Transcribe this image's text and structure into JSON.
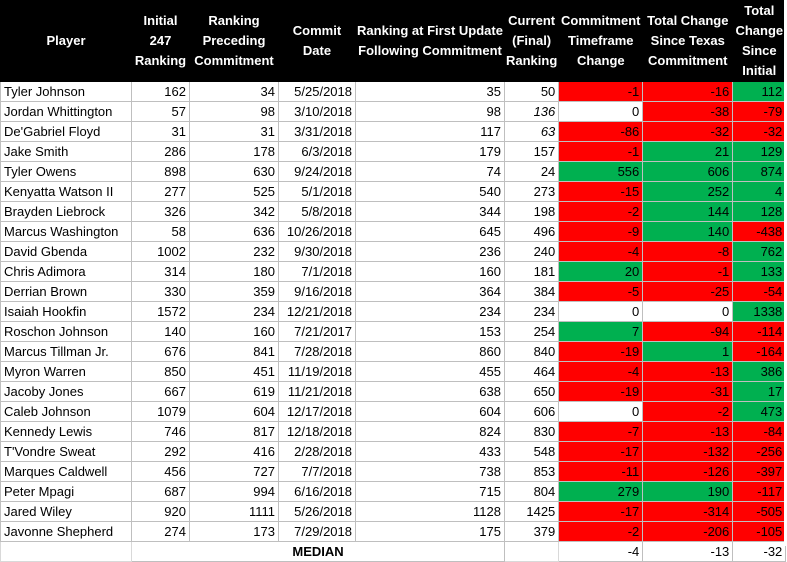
{
  "headers": [
    "Player",
    "Initial 247 Ranking",
    "Ranking Preceding Commitment",
    "Commit Date",
    "Ranking at First Update Following Commitment",
    "Current (Final) Ranking",
    "Commitment Timeframe Change",
    "Total Change Since Texas Commitment",
    "Total Change Since Initial"
  ],
  "rows": [
    {
      "player": "Tyler Johnson",
      "initial": "162",
      "preceding": "34",
      "date": "5/25/2018",
      "first_update": "35",
      "current": "50",
      "current_italic": false,
      "timeframe": "-1",
      "timeframe_color": "red",
      "since_texas": "-16",
      "since_texas_color": "red",
      "since_initial": "112",
      "since_initial_color": "green"
    },
    {
      "player": "Jordan Whittington",
      "initial": "57",
      "preceding": "98",
      "date": "3/10/2018",
      "first_update": "98",
      "current": "136",
      "current_italic": true,
      "timeframe": "0",
      "timeframe_color": "white",
      "since_texas": "-38",
      "since_texas_color": "red",
      "since_initial": "-79",
      "since_initial_color": "red"
    },
    {
      "player": "De'Gabriel Floyd",
      "initial": "31",
      "preceding": "31",
      "date": "3/31/2018",
      "first_update": "117",
      "current": "63",
      "current_italic": true,
      "timeframe": "-86",
      "timeframe_color": "red",
      "since_texas": "-32",
      "since_texas_color": "red",
      "since_initial": "-32",
      "since_initial_color": "red"
    },
    {
      "player": "Jake Smith",
      "initial": "286",
      "preceding": "178",
      "date": "6/3/2018",
      "first_update": "179",
      "current": "157",
      "current_italic": false,
      "timeframe": "-1",
      "timeframe_color": "red",
      "since_texas": "21",
      "since_texas_color": "green",
      "since_initial": "129",
      "since_initial_color": "green"
    },
    {
      "player": "Tyler Owens",
      "initial": "898",
      "preceding": "630",
      "date": "9/24/2018",
      "first_update": "74",
      "current": "24",
      "current_italic": false,
      "timeframe": "556",
      "timeframe_color": "green",
      "since_texas": "606",
      "since_texas_color": "green",
      "since_initial": "874",
      "since_initial_color": "green"
    },
    {
      "player": "Kenyatta Watson II",
      "initial": "277",
      "preceding": "525",
      "date": "5/1/2018",
      "first_update": "540",
      "current": "273",
      "current_italic": false,
      "timeframe": "-15",
      "timeframe_color": "red",
      "since_texas": "252",
      "since_texas_color": "green",
      "since_initial": "4",
      "since_initial_color": "green"
    },
    {
      "player": "Brayden Liebrock",
      "initial": "326",
      "preceding": "342",
      "date": "5/8/2018",
      "first_update": "344",
      "current": "198",
      "current_italic": false,
      "timeframe": "-2",
      "timeframe_color": "red",
      "since_texas": "144",
      "since_texas_color": "green",
      "since_initial": "128",
      "since_initial_color": "green"
    },
    {
      "player": "Marcus Washington",
      "initial": "58",
      "preceding": "636",
      "date": "10/26/2018",
      "first_update": "645",
      "current": "496",
      "current_italic": false,
      "timeframe": "-9",
      "timeframe_color": "red",
      "since_texas": "140",
      "since_texas_color": "green",
      "since_initial": "-438",
      "since_initial_color": "red"
    },
    {
      "player": "David Gbenda",
      "initial": "1002",
      "preceding": "232",
      "date": "9/30/2018",
      "first_update": "236",
      "current": "240",
      "current_italic": false,
      "timeframe": "-4",
      "timeframe_color": "red",
      "since_texas": "-8",
      "since_texas_color": "red",
      "since_initial": "762",
      "since_initial_color": "green"
    },
    {
      "player": "Chris Adimora",
      "initial": "314",
      "preceding": "180",
      "date": "7/1/2018",
      "first_update": "160",
      "current": "181",
      "current_italic": false,
      "timeframe": "20",
      "timeframe_color": "green",
      "since_texas": "-1",
      "since_texas_color": "red",
      "since_initial": "133",
      "since_initial_color": "green"
    },
    {
      "player": "Derrian Brown",
      "initial": "330",
      "preceding": "359",
      "date": "9/16/2018",
      "first_update": "364",
      "current": "384",
      "current_italic": false,
      "timeframe": "-5",
      "timeframe_color": "red",
      "since_texas": "-25",
      "since_texas_color": "red",
      "since_initial": "-54",
      "since_initial_color": "red"
    },
    {
      "player": "Isaiah Hookfin",
      "initial": "1572",
      "preceding": "234",
      "date": "12/21/2018",
      "first_update": "234",
      "current": "234",
      "current_italic": false,
      "timeframe": "0",
      "timeframe_color": "white",
      "since_texas": "0",
      "since_texas_color": "white",
      "since_initial": "1338",
      "since_initial_color": "green"
    },
    {
      "player": "Roschon Johnson",
      "initial": "140",
      "preceding": "160",
      "date": "7/21/2017",
      "first_update": "153",
      "current": "254",
      "current_italic": false,
      "timeframe": "7",
      "timeframe_color": "green",
      "since_texas": "-94",
      "since_texas_color": "red",
      "since_initial": "-114",
      "since_initial_color": "red"
    },
    {
      "player": "Marcus Tillman Jr.",
      "initial": "676",
      "preceding": "841",
      "date": "7/28/2018",
      "first_update": "860",
      "current": "840",
      "current_italic": false,
      "timeframe": "-19",
      "timeframe_color": "red",
      "since_texas": "1",
      "since_texas_color": "green",
      "since_initial": "-164",
      "since_initial_color": "red"
    },
    {
      "player": "Myron Warren",
      "initial": "850",
      "preceding": "451",
      "date": "11/19/2018",
      "first_update": "455",
      "current": "464",
      "current_italic": false,
      "timeframe": "-4",
      "timeframe_color": "red",
      "since_texas": "-13",
      "since_texas_color": "red",
      "since_initial": "386",
      "since_initial_color": "green"
    },
    {
      "player": "Jacoby Jones",
      "initial": "667",
      "preceding": "619",
      "date": "11/21/2018",
      "first_update": "638",
      "current": "650",
      "current_italic": false,
      "timeframe": "-19",
      "timeframe_color": "red",
      "since_texas": "-31",
      "since_texas_color": "red",
      "since_initial": "17",
      "since_initial_color": "green"
    },
    {
      "player": "Caleb Johnson",
      "initial": "1079",
      "preceding": "604",
      "date": "12/17/2018",
      "first_update": "604",
      "current": "606",
      "current_italic": false,
      "timeframe": "0",
      "timeframe_color": "white",
      "since_texas": "-2",
      "since_texas_color": "red",
      "since_initial": "473",
      "since_initial_color": "green"
    },
    {
      "player": "Kennedy Lewis",
      "initial": "746",
      "preceding": "817",
      "date": "12/18/2018",
      "first_update": "824",
      "current": "830",
      "current_italic": false,
      "timeframe": "-7",
      "timeframe_color": "red",
      "since_texas": "-13",
      "since_texas_color": "red",
      "since_initial": "-84",
      "since_initial_color": "red"
    },
    {
      "player": "T'Vondre Sweat",
      "initial": "292",
      "preceding": "416",
      "date": "2/28/2018",
      "first_update": "433",
      "current": "548",
      "current_italic": false,
      "timeframe": "-17",
      "timeframe_color": "red",
      "since_texas": "-132",
      "since_texas_color": "red",
      "since_initial": "-256",
      "since_initial_color": "red"
    },
    {
      "player": "Marques Caldwell",
      "initial": "456",
      "preceding": "727",
      "date": "7/7/2018",
      "first_update": "738",
      "current": "853",
      "current_italic": false,
      "timeframe": "-11",
      "timeframe_color": "red",
      "since_texas": "-126",
      "since_texas_color": "red",
      "since_initial": "-397",
      "since_initial_color": "red"
    },
    {
      "player": "Peter Mpagi",
      "initial": "687",
      "preceding": "994",
      "date": "6/16/2018",
      "first_update": "715",
      "current": "804",
      "current_italic": false,
      "timeframe": "279",
      "timeframe_color": "green",
      "since_texas": "190",
      "since_texas_color": "green",
      "since_initial": "-117",
      "since_initial_color": "red"
    },
    {
      "player": "Jared Wiley",
      "initial": "920",
      "preceding": "1111",
      "date": "5/26/2018",
      "first_update": "1128",
      "current": "1425",
      "current_italic": false,
      "timeframe": "-17",
      "timeframe_color": "red",
      "since_texas": "-314",
      "since_texas_color": "red",
      "since_initial": "-505",
      "since_initial_color": "red"
    },
    {
      "player": "Javonne Shepherd",
      "initial": "274",
      "preceding": "173",
      "date": "7/29/2018",
      "first_update": "175",
      "current": "379",
      "current_italic": false,
      "timeframe": "-2",
      "timeframe_color": "red",
      "since_texas": "-206",
      "since_texas_color": "red",
      "since_initial": "-105",
      "since_initial_color": "red"
    }
  ],
  "median": {
    "label": "MEDIAN",
    "timeframe": "-4",
    "since_texas": "-13",
    "since_initial": "-32"
  },
  "colors": {
    "red": "#ff0000",
    "green": "#00b050",
    "white": "#ffffff",
    "header_bg": "#000000"
  }
}
